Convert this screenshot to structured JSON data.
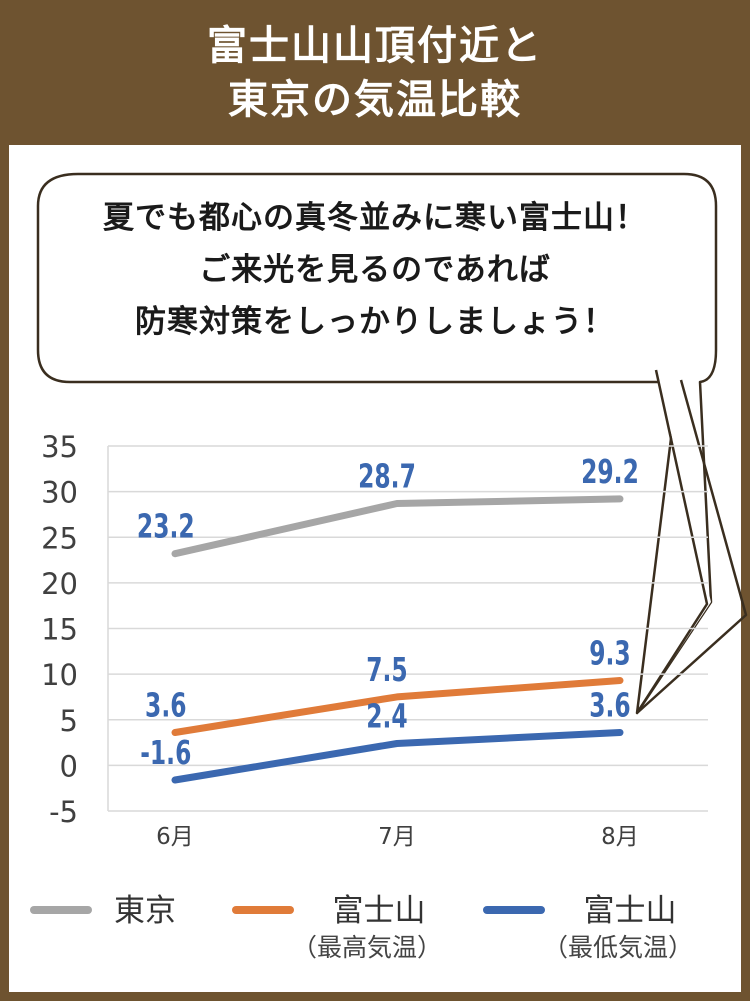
{
  "header": {
    "line1": "富士山山頂付近と",
    "line2": "東京の気温比較"
  },
  "bubble": {
    "line1": "夏でも都心の真冬並みに寒い富士山！",
    "line2": "ご来光を見るのであれば",
    "line3": "防寒対策をしっかりしましょう！"
  },
  "colors": {
    "frame": "#6e5330",
    "tokyo": "#a6a6a6",
    "fuji_high": "#e07b39",
    "fuji_low": "#3b68b0",
    "data_label": "#3b68b0"
  },
  "chart_data": {
    "type": "line",
    "categories": [
      "6月",
      "7月",
      "8月"
    ],
    "ylim": [
      -5,
      35
    ],
    "yticks": [
      35,
      30,
      25,
      20,
      15,
      10,
      5,
      0,
      -5
    ],
    "grid": true,
    "legend_position": "bottom",
    "series": [
      {
        "name": "東京",
        "values": [
          23.2,
          28.7,
          29.2
        ],
        "labels": [
          "23.2",
          "28.7",
          "29.2"
        ],
        "color": "#a6a6a6"
      },
      {
        "name": "富士山（最高気温）",
        "values": [
          3.6,
          7.5,
          9.3
        ],
        "labels": [
          "3.6",
          "7.5",
          "9.3"
        ],
        "color": "#e07b39"
      },
      {
        "name": "富士山（最低気温）",
        "values": [
          -1.6,
          2.4,
          3.6
        ],
        "labels": [
          "-1.6",
          "2.4",
          "3.6"
        ],
        "color": "#3b68b0"
      }
    ]
  },
  "legend": {
    "tokyo": {
      "label": "東京",
      "sub": ""
    },
    "fuji_high": {
      "label": "富士山",
      "sub": "（最高気温）"
    },
    "fuji_low": {
      "label": "富士山",
      "sub": "（最低気温）"
    }
  }
}
